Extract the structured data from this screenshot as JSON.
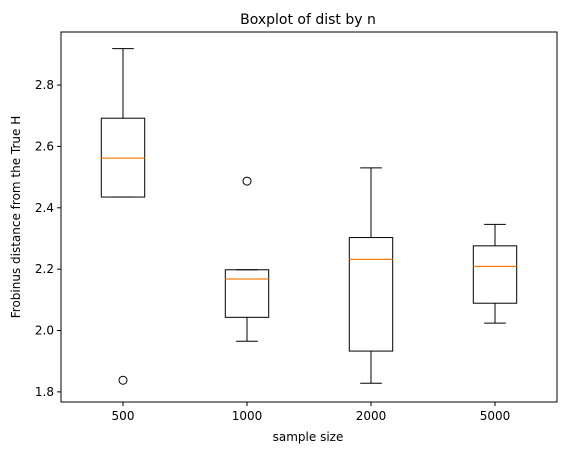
{
  "chart_data": {
    "type": "boxplot",
    "title": "Boxplot of dist by n",
    "xlabel": "sample size",
    "ylabel": "Frobinus distance from the True H",
    "categories": [
      "500",
      "1000",
      "2000",
      "5000"
    ],
    "boxes": [
      {
        "category": "500",
        "whisker_low": 2.435,
        "q1": 2.435,
        "median": 2.562,
        "q3": 2.692,
        "whisker_high": 2.919,
        "outliers": [
          1.838
        ]
      },
      {
        "category": "1000",
        "whisker_low": 1.965,
        "q1": 2.043,
        "median": 2.168,
        "q3": 2.198,
        "whisker_high": 2.198,
        "outliers": [
          2.487
        ]
      },
      {
        "category": "2000",
        "whisker_low": 1.828,
        "q1": 1.933,
        "median": 2.232,
        "q3": 2.303,
        "whisker_high": 2.53,
        "outliers": []
      },
      {
        "category": "5000",
        "whisker_low": 2.024,
        "q1": 2.089,
        "median": 2.209,
        "q3": 2.276,
        "whisker_high": 2.346,
        "outliers": []
      }
    ],
    "ylim": [
      1.767,
      2.973
    ],
    "yticks": [
      "1.8",
      "2.0",
      "2.2",
      "2.4",
      "2.6",
      "2.8"
    ],
    "grid": false,
    "colors": {
      "box": "#000000",
      "median": "#ff7f0e"
    }
  }
}
